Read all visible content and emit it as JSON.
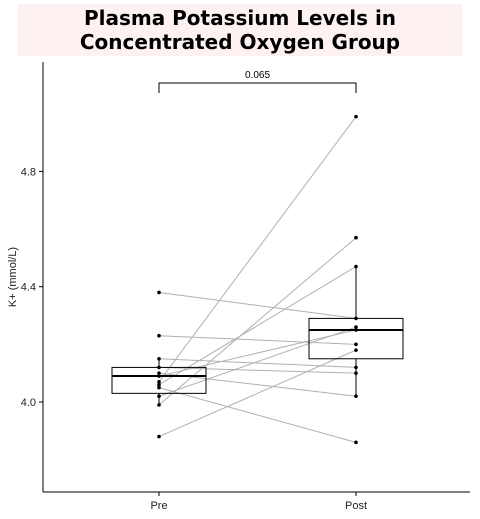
{
  "chart_data": {
    "type": "box-paired",
    "title_lines": [
      "Plasma Potassium Levels in",
      "Concentrated Oxygen Group"
    ],
    "ylabel": "K+ (mmol/L)",
    "categories": [
      "Pre",
      "Post"
    ],
    "yticks": [
      4.0,
      4.4,
      4.8
    ],
    "ylim": [
      3.67,
      5.0
    ],
    "grid": false,
    "boxes": [
      {
        "group": "Pre",
        "min": 3.99,
        "q1": 4.03,
        "median": 4.09,
        "q3": 4.12,
        "max": 4.15
      },
      {
        "group": "Post",
        "min": 4.02,
        "q1": 4.15,
        "median": 4.25,
        "q3": 4.29,
        "max": 4.47
      }
    ],
    "pairs": [
      [
        4.38,
        4.29
      ],
      [
        4.23,
        4.2
      ],
      [
        4.15,
        4.12
      ],
      [
        4.12,
        4.1
      ],
      [
        4.1,
        4.02
      ],
      [
        4.09,
        4.25
      ],
      [
        4.07,
        4.99
      ],
      [
        4.06,
        4.47
      ],
      [
        4.05,
        3.86
      ],
      [
        4.02,
        4.26
      ],
      [
        3.99,
        4.57
      ],
      [
        3.88,
        4.18
      ]
    ],
    "comparison": {
      "label": "0.065",
      "from": "Pre",
      "to": "Post"
    },
    "colors": {
      "lines": "#b0b0b0",
      "box": "#000000",
      "points": "#000000"
    }
  }
}
